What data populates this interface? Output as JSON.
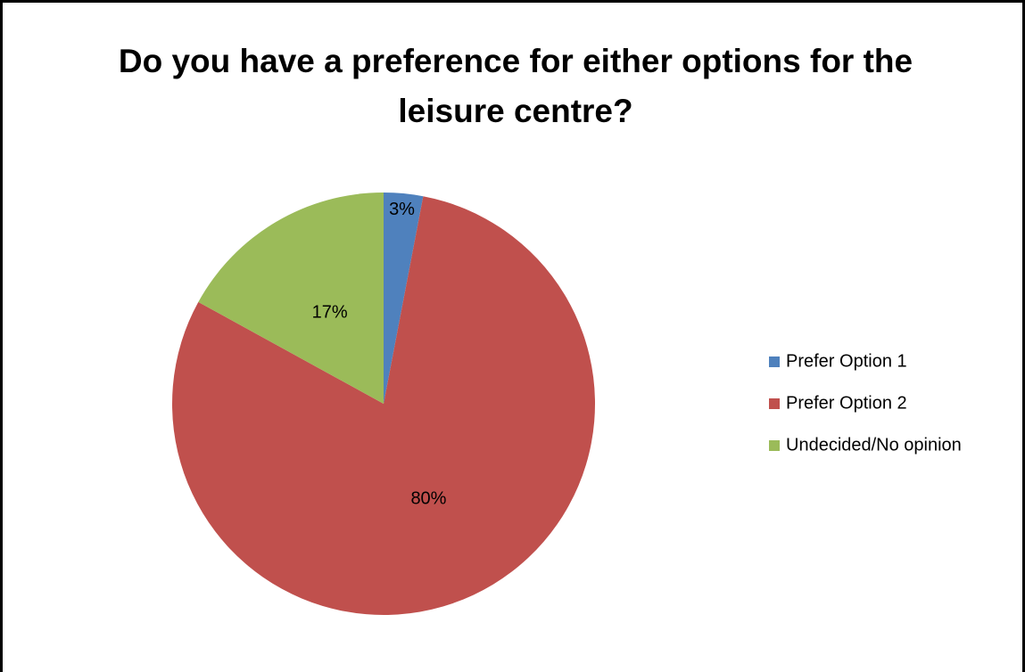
{
  "chart_data": {
    "type": "pie",
    "title": "Do you have a preference for either options for the leisure centre?",
    "categories": [
      "Prefer Option 1",
      "Prefer Option 2",
      "Undecided/No opinion"
    ],
    "values": [
      3,
      80,
      17
    ],
    "value_labels": [
      "3%",
      "80%",
      "17%"
    ],
    "colors": [
      "#4f81bd",
      "#c0504d",
      "#9bbb59"
    ],
    "legend": "right"
  }
}
